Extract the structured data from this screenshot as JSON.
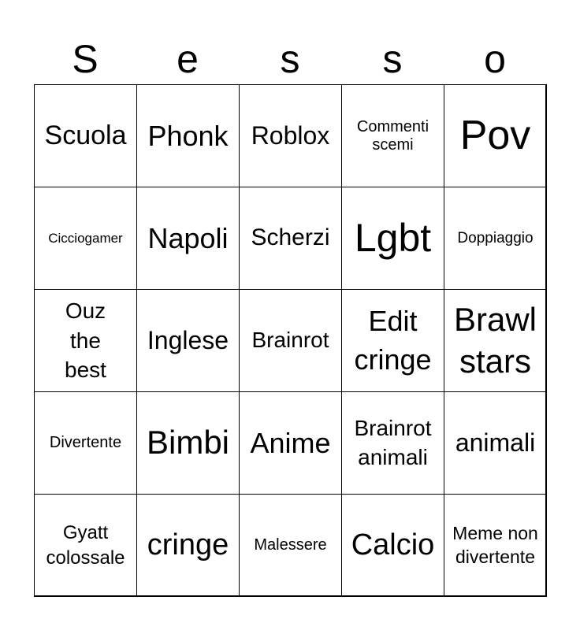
{
  "title_letters": [
    "S",
    "e",
    "s",
    "s",
    "o"
  ],
  "cells": [
    [
      "Scuola",
      "Phonk",
      "Roblox",
      "Commenti scemi",
      "Pov"
    ],
    [
      "Cicciogamer",
      "Napoli",
      "Scherzi",
      "Lgbt",
      "Doppiaggio"
    ],
    [
      "Ouz the best",
      "Inglese",
      "Brainrot",
      "Edit cringe",
      "Brawl stars"
    ],
    [
      "Divertente",
      "Bimbi",
      "Anime",
      "Brainrot animali",
      "animali"
    ],
    [
      "Gyatt colossale",
      "cringe",
      "Malessere",
      "Calcio",
      "Meme non divertente"
    ]
  ]
}
